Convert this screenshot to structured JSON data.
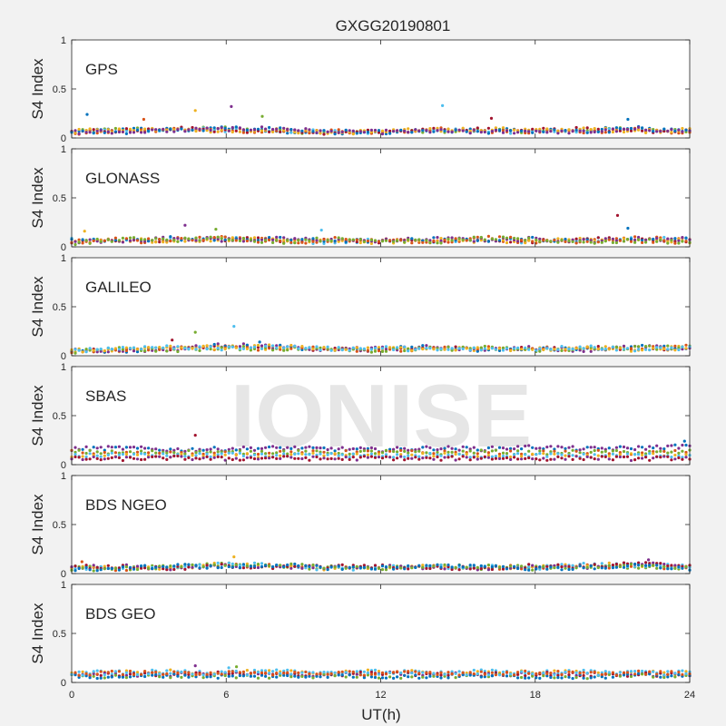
{
  "chart_data": {
    "type": "scatter",
    "title": "GXGG20190801",
    "xlabel": "UT(h)",
    "ylabel": "S4 Index",
    "xlim": [
      0,
      24
    ],
    "ylim": [
      0,
      1
    ],
    "xticks": [
      0,
      6,
      12,
      18,
      24
    ],
    "yticks": [
      0,
      0.5,
      1
    ],
    "grid": false,
    "watermark": "IONISE",
    "series_colors": [
      "#0072bd",
      "#d95319",
      "#edb120",
      "#7e2f8e",
      "#77ac30",
      "#4dbeee",
      "#a2142f"
    ],
    "panels": [
      {
        "label": "GPS",
        "series": [
          {
            "x": [
              0,
              2,
              4,
              6,
              8,
              10,
              12,
              14,
              16,
              18,
              20,
              22,
              24
            ],
            "y": [
              0.06,
              0.09,
              0.08,
              0.1,
              0.07,
              0.06,
              0.06,
              0.07,
              0.08,
              0.07,
              0.08,
              0.1,
              0.07
            ]
          },
          {
            "x": [
              0,
              2,
              4,
              6,
              8,
              10,
              12,
              14,
              16,
              18,
              20,
              22,
              24
            ],
            "y": [
              0.05,
              0.07,
              0.09,
              0.08,
              0.06,
              0.07,
              0.05,
              0.09,
              0.07,
              0.06,
              0.07,
              0.08,
              0.06
            ]
          },
          {
            "x": [
              0,
              2,
              4,
              6,
              8,
              10,
              12,
              14,
              16,
              18,
              20,
              22,
              24
            ],
            "y": [
              0.07,
              0.08,
              0.1,
              0.07,
              0.08,
              0.05,
              0.07,
              0.08,
              0.09,
              0.08,
              0.09,
              0.07,
              0.08
            ]
          },
          {
            "x": [
              0,
              2,
              4,
              6,
              8,
              10,
              12,
              14,
              16,
              18,
              20,
              22,
              24
            ],
            "y": [
              0.06,
              0.06,
              0.08,
              0.09,
              0.1,
              0.06,
              0.06,
              0.07,
              0.06,
              0.07,
              0.06,
              0.09,
              0.07
            ]
          }
        ],
        "peaks": [
          {
            "x": 0.6,
            "y": 0.24
          },
          {
            "x": 2.8,
            "y": 0.19
          },
          {
            "x": 4.8,
            "y": 0.28
          },
          {
            "x": 6.2,
            "y": 0.32
          },
          {
            "x": 7.4,
            "y": 0.22
          },
          {
            "x": 14.4,
            "y": 0.33
          },
          {
            "x": 16.3,
            "y": 0.2
          },
          {
            "x": 21.6,
            "y": 0.19
          }
        ]
      },
      {
        "label": "GLONASS",
        "series": [
          {
            "x": [
              0,
              2,
              4,
              6,
              8,
              10,
              12,
              14,
              16,
              18,
              20,
              22,
              24
            ],
            "y": [
              0.07,
              0.05,
              0.08,
              0.1,
              0.06,
              0.05,
              0.07,
              0.06,
              0.08,
              0.05,
              0.07,
              0.09,
              0.07
            ]
          },
          {
            "x": [
              0,
              2,
              4,
              6,
              8,
              10,
              12,
              14,
              16,
              18,
              20,
              22,
              24
            ],
            "y": [
              0.05,
              0.07,
              0.06,
              0.08,
              0.07,
              0.06,
              0.05,
              0.07,
              0.06,
              0.06,
              0.08,
              0.07,
              0.06
            ]
          },
          {
            "x": [
              0,
              2,
              4,
              6,
              8,
              10,
              12,
              14,
              16,
              18,
              20,
              22,
              24
            ],
            "y": [
              0.06,
              0.06,
              0.09,
              0.07,
              0.08,
              0.07,
              0.06,
              0.08,
              0.07,
              0.08,
              0.06,
              0.08,
              0.08
            ]
          },
          {
            "x": [
              0,
              2,
              4,
              6,
              8,
              10,
              12,
              14,
              16,
              18,
              20,
              22,
              24
            ],
            "y": [
              0.04,
              0.08,
              0.07,
              0.09,
              0.05,
              0.08,
              0.07,
              0.05,
              0.09,
              0.07,
              0.05,
              0.06,
              0.05
            ]
          }
        ],
        "peaks": [
          {
            "x": 0.5,
            "y": 0.16
          },
          {
            "x": 4.4,
            "y": 0.22
          },
          {
            "x": 5.6,
            "y": 0.18
          },
          {
            "x": 9.7,
            "y": 0.17
          },
          {
            "x": 21.2,
            "y": 0.32
          },
          {
            "x": 21.6,
            "y": 0.19
          }
        ]
      },
      {
        "label": "GALILEO",
        "series": [
          {
            "x": [
              0,
              2,
              4,
              6,
              8,
              10,
              12,
              14,
              16,
              18,
              20,
              22,
              24
            ],
            "y": [
              0.05,
              0.06,
              0.08,
              0.09,
              0.08,
              0.07,
              0.06,
              0.08,
              0.07,
              0.07,
              0.08,
              0.07,
              0.08
            ]
          },
          {
            "x": [
              0,
              2,
              4,
              6,
              8,
              10,
              12,
              14,
              16,
              18,
              20,
              22,
              24
            ],
            "y": [
              0.06,
              0.05,
              0.07,
              0.11,
              0.09,
              0.06,
              0.07,
              0.09,
              0.06,
              0.08,
              0.06,
              0.09,
              0.07
            ]
          },
          {
            "x": [
              0,
              2,
              4,
              6,
              8,
              10,
              12,
              14,
              16,
              18,
              20,
              22,
              24
            ],
            "y": [
              0.04,
              0.07,
              0.06,
              0.08,
              0.07,
              0.08,
              0.05,
              0.07,
              0.08,
              0.06,
              0.07,
              0.08,
              0.09
            ]
          },
          {
            "x": [
              0,
              2,
              4,
              6,
              8,
              10,
              12,
              14,
              16,
              18,
              20,
              22,
              24
            ],
            "y": [
              0.05,
              0.08,
              0.09,
              0.07,
              0.1,
              0.07,
              0.08,
              0.06,
              0.07,
              0.07,
              0.09,
              0.06,
              0.08
            ]
          }
        ],
        "peaks": [
          {
            "x": 4.8,
            "y": 0.24
          },
          {
            "x": 6.3,
            "y": 0.3
          },
          {
            "x": 3.9,
            "y": 0.16
          },
          {
            "x": 7.3,
            "y": 0.14
          }
        ]
      },
      {
        "label": "SBAS",
        "series": [
          {
            "x": [
              0,
              2,
              4,
              6,
              8,
              10,
              12,
              14,
              16,
              18,
              20,
              22,
              24
            ],
            "y": [
              0.16,
              0.17,
              0.15,
              0.16,
              0.17,
              0.16,
              0.15,
              0.17,
              0.16,
              0.18,
              0.16,
              0.17,
              0.19
            ]
          },
          {
            "x": [
              0,
              2,
              4,
              6,
              8,
              10,
              12,
              14,
              16,
              18,
              20,
              22,
              24
            ],
            "y": [
              0.13,
              0.12,
              0.13,
              0.12,
              0.13,
              0.12,
              0.13,
              0.12,
              0.13,
              0.12,
              0.13,
              0.12,
              0.13
            ]
          },
          {
            "x": [
              0,
              2,
              4,
              6,
              8,
              10,
              12,
              14,
              16,
              18,
              20,
              22,
              24
            ],
            "y": [
              0.09,
              0.1,
              0.09,
              0.1,
              0.09,
              0.1,
              0.09,
              0.1,
              0.09,
              0.1,
              0.09,
              0.1,
              0.09
            ]
          },
          {
            "x": [
              0,
              2,
              4,
              6,
              8,
              10,
              12,
              14,
              16,
              18,
              20,
              22,
              24
            ],
            "y": [
              0.06,
              0.06,
              0.07,
              0.06,
              0.07,
              0.06,
              0.07,
              0.06,
              0.07,
              0.06,
              0.07,
              0.06,
              0.07
            ]
          }
        ],
        "peaks": [
          {
            "x": 4.8,
            "y": 0.3
          },
          {
            "x": 23.8,
            "y": 0.24
          }
        ]
      },
      {
        "label": "BDS NGEO",
        "series": [
          {
            "x": [
              0,
              2,
              4,
              6,
              8,
              10,
              12,
              14,
              16,
              18,
              20,
              22,
              24
            ],
            "y": [
              0.06,
              0.05,
              0.07,
              0.09,
              0.07,
              0.06,
              0.05,
              0.08,
              0.06,
              0.07,
              0.08,
              0.07,
              0.06
            ]
          },
          {
            "x": [
              0,
              2,
              4,
              6,
              8,
              10,
              12,
              14,
              16,
              18,
              20,
              22,
              24
            ],
            "y": [
              0.05,
              0.06,
              0.06,
              0.1,
              0.08,
              0.05,
              0.06,
              0.07,
              0.07,
              0.06,
              0.09,
              0.09,
              0.07
            ]
          },
          {
            "x": [
              0,
              2,
              4,
              6,
              8,
              10,
              12,
              14,
              16,
              18,
              20,
              22,
              24
            ],
            "y": [
              0.07,
              0.07,
              0.05,
              0.08,
              0.06,
              0.07,
              0.07,
              0.06,
              0.05,
              0.08,
              0.07,
              0.1,
              0.08
            ]
          },
          {
            "x": [
              0,
              2,
              4,
              6,
              8,
              10,
              12,
              14,
              16,
              18,
              20,
              22,
              24
            ],
            "y": [
              0.04,
              0.05,
              0.08,
              0.07,
              0.09,
              0.06,
              0.06,
              0.07,
              0.08,
              0.05,
              0.06,
              0.08,
              0.05
            ]
          }
        ],
        "peaks": [
          {
            "x": 0.4,
            "y": 0.12
          },
          {
            "x": 6.3,
            "y": 0.17
          },
          {
            "x": 22.4,
            "y": 0.14
          }
        ]
      },
      {
        "label": "BDS GEO",
        "series": [
          {
            "x": [
              0,
              2,
              4,
              6,
              8,
              10,
              12,
              14,
              16,
              18,
              20,
              22,
              24
            ],
            "y": [
              0.1,
              0.1,
              0.11,
              0.1,
              0.11,
              0.1,
              0.11,
              0.1,
              0.11,
              0.1,
              0.11,
              0.1,
              0.1
            ]
          },
          {
            "x": [
              0,
              2,
              4,
              6,
              8,
              10,
              12,
              14,
              16,
              18,
              20,
              22,
              24
            ],
            "y": [
              0.08,
              0.08,
              0.08,
              0.09,
              0.08,
              0.08,
              0.09,
              0.08,
              0.08,
              0.09,
              0.08,
              0.08,
              0.08
            ]
          },
          {
            "x": [
              0,
              2,
              4,
              6,
              8,
              10,
              12,
              14,
              16,
              18,
              20,
              22,
              24
            ],
            "y": [
              0.06,
              0.06,
              0.07,
              0.06,
              0.06,
              0.07,
              0.06,
              0.06,
              0.07,
              0.06,
              0.06,
              0.07,
              0.06
            ]
          },
          {
            "x": [
              0,
              2,
              4,
              6,
              8,
              10,
              12,
              14,
              16,
              18,
              20,
              22,
              24
            ],
            "y": [
              0.09,
              0.1,
              0.09,
              0.1,
              0.09,
              0.1,
              0.09,
              0.1,
              0.09,
              0.1,
              0.09,
              0.1,
              0.09
            ]
          }
        ],
        "peaks": [
          {
            "x": 4.8,
            "y": 0.17
          },
          {
            "x": 6.4,
            "y": 0.16
          },
          {
            "x": 6.1,
            "y": 0.15
          }
        ]
      }
    ]
  }
}
